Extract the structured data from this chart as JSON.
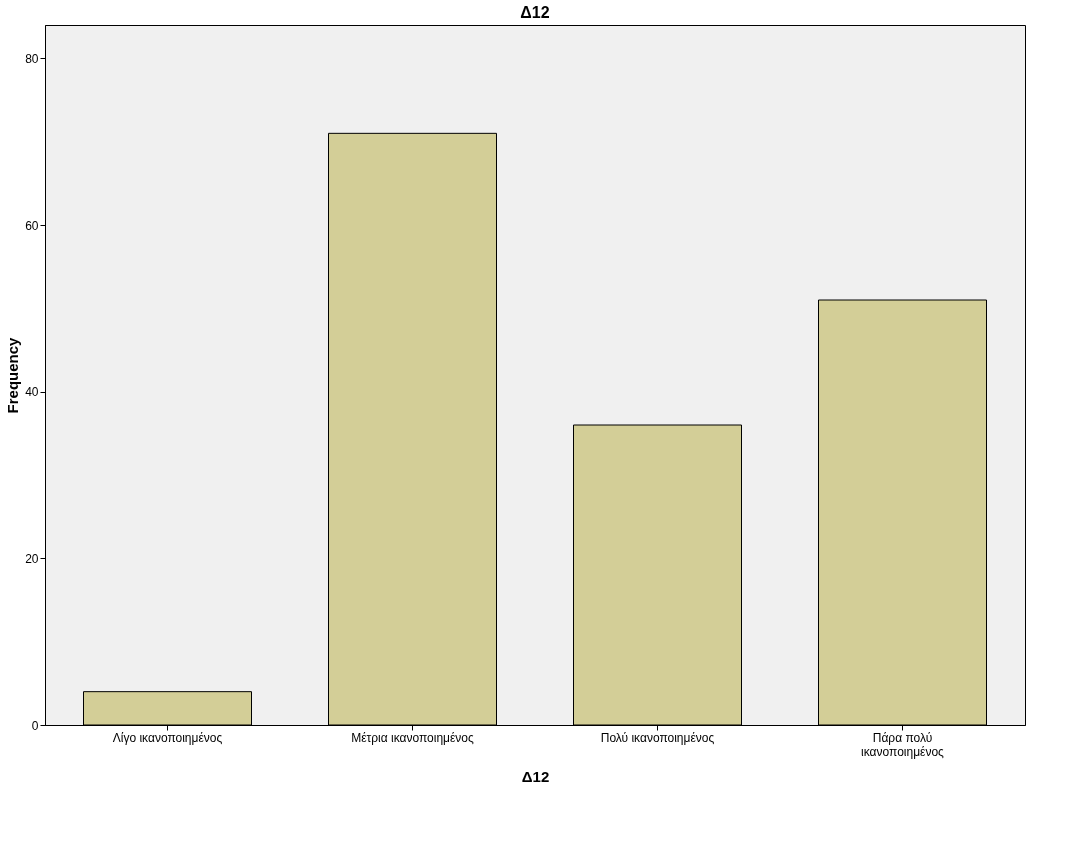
{
  "chart_data": {
    "type": "bar",
    "title": "Δ12",
    "xlabel": "Δ12",
    "ylabel": "Frequency",
    "categories": [
      "Λίγο ικανοποιημένος",
      "Μέτρια ικανοποιημένος",
      "Πολύ ικανοποιημένος",
      "Πάρα πολύ ικανοποιημένος"
    ],
    "values": [
      4,
      71,
      36,
      51
    ],
    "color": "#d3ce97",
    "ylim": [
      0,
      84
    ],
    "yticks": [
      0,
      20,
      40,
      60,
      80
    ],
    "grid": false
  }
}
